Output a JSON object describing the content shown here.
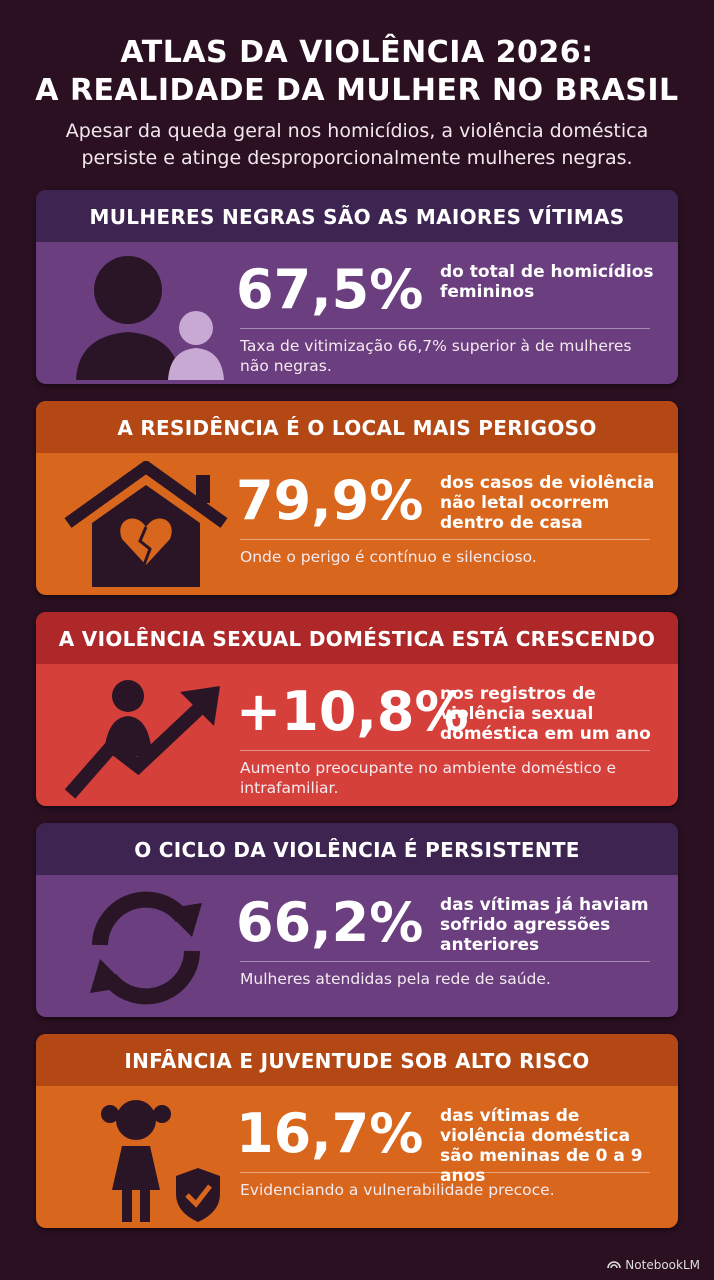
{
  "header": {
    "title_lines": [
      "ATLAS DA VIOLÊNCIA 2026:",
      "A REALIDADE DA MULHER NO BRASIL"
    ],
    "subtitle": "Apesar da queda geral nos homicídios, a violência doméstica persiste e atinge desproporcionalmente mulheres negras."
  },
  "cards": [
    {
      "heading": "MULHERES NEGRAS SÃO AS MAIORES VÍTIMAS",
      "stat": "67,5%",
      "description": "do total de homicídios femininos",
      "note": "Taxa de vitimização 66,7% superior à de mulheres não negras."
    },
    {
      "heading": "A RESIDÊNCIA É O LOCAL MAIS PERIGOSO",
      "stat": "79,9%",
      "description": "dos casos de violência não letal ocorrem dentro de casa",
      "note": "Onde o perigo é contínuo e silencioso."
    },
    {
      "heading": "A VIOLÊNCIA SEXUAL DOMÉSTICA ESTÁ CRESCENDO",
      "stat": "+10,8%",
      "description": "nos registros de violência sexual doméstica em um ano",
      "note": "Aumento preocupante no ambiente doméstico e intrafamiliar."
    },
    {
      "heading": "O CICLO DA VIOLÊNCIA É PERSISTENTE",
      "stat": "66,2%",
      "description": "das vítimas já haviam sofrido agressões anteriores",
      "note": "Mulheres atendidas pela rede de saúde."
    },
    {
      "heading": "INFÂNCIA E JUVENTUDE SOB ALTO RISCO",
      "stat": "16,7%",
      "description": "das vítimas de violência doméstica são meninas de 0 a 9 anos",
      "note": "Evidenciando a vulnerabilidade precoce."
    }
  ],
  "footer": {
    "brand": "NotebookLM"
  }
}
